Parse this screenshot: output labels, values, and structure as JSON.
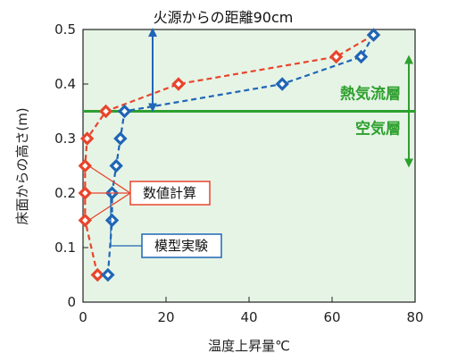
{
  "chart_data": {
    "type": "scatter",
    "title": "火源からの距離90cm",
    "xlabel": "温度上昇量℃",
    "ylabel": "床面からの高さ(m)",
    "xlim": [
      0,
      80
    ],
    "ylim": [
      0,
      0.5
    ],
    "xticks": [
      "0",
      "20",
      "40",
      "60",
      "80"
    ],
    "yticks": [
      "0",
      "0.1",
      "0.2",
      "0.3",
      "0.4",
      "0.5"
    ],
    "series": [
      {
        "name": "数値計算",
        "color": "#e8452c",
        "x": [
          3.5,
          0.5,
          0.5,
          0.5,
          1.0,
          5.5,
          23,
          61,
          70
        ],
        "y": [
          0.05,
          0.15,
          0.2,
          0.25,
          0.3,
          0.35,
          0.4,
          0.45,
          0.49
        ]
      },
      {
        "name": "模型実験",
        "color": "#1f66b5",
        "x": [
          6,
          7,
          7,
          8,
          9,
          10,
          48,
          67,
          70
        ],
        "y": [
          0.05,
          0.15,
          0.2,
          0.25,
          0.3,
          0.35,
          0.4,
          0.45,
          0.49
        ]
      }
    ],
    "boundary": {
      "y": 0.35,
      "color": "#2ea02e",
      "upper_label": "熱気流層",
      "lower_label": "空気層"
    },
    "legend": {
      "placement": "left",
      "numeric_label": "数値計算",
      "experiment_label": "模型実験"
    },
    "grid": false,
    "background": "#e6f4e6"
  }
}
